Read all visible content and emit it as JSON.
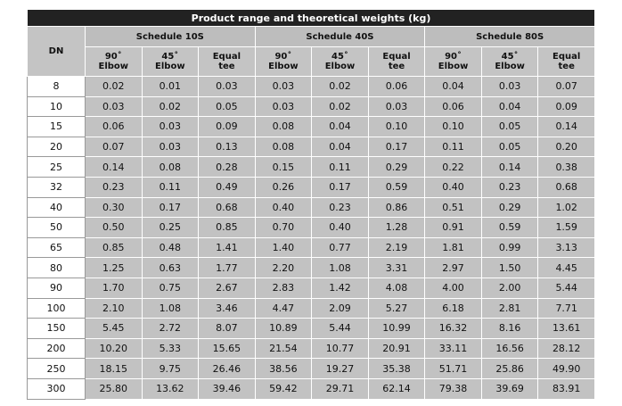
{
  "title": "Product range and theoretical weights (kg)",
  "dn_header": "DN",
  "groups": [
    "Schedule 10S",
    "Schedule 40S",
    "Schedule 80S"
  ],
  "sub_headers": [
    "90˚\nElbow",
    "45˚\nElbow",
    "Equal\ntee"
  ],
  "rows": [
    [
      "8",
      "0.02",
      "0.01",
      "0.03",
      "0.03",
      "0.02",
      "0.06",
      "0.04",
      "0.03",
      "0.07"
    ],
    [
      "10",
      "0.03",
      "0.02",
      "0.05",
      "0.03",
      "0.02",
      "0.03",
      "0.06",
      "0.04",
      "0.09"
    ],
    [
      "15",
      "0.06",
      "0.03",
      "0.09",
      "0.08",
      "0.04",
      "0.10",
      "0.10",
      "0.05",
      "0.14"
    ],
    [
      "20",
      "0.07",
      "0.03",
      "0.13",
      "0.08",
      "0.04",
      "0.17",
      "0.11",
      "0.05",
      "0.20"
    ],
    [
      "25",
      "0.14",
      "0.08",
      "0.28",
      "0.15",
      "0.11",
      "0.29",
      "0.22",
      "0.14",
      "0.38"
    ],
    [
      "32",
      "0.23",
      "0.11",
      "0.49",
      "0.26",
      "0.17",
      "0.59",
      "0.40",
      "0.23",
      "0.68"
    ],
    [
      "40",
      "0.30",
      "0.17",
      "0.68",
      "0.40",
      "0.23",
      "0.86",
      "0.51",
      "0.29",
      "1.02"
    ],
    [
      "50",
      "0.50",
      "0.25",
      "0.85",
      "0.70",
      "0.40",
      "1.28",
      "0.91",
      "0.59",
      "1.59"
    ],
    [
      "65",
      "0.85",
      "0.48",
      "1.41",
      "1.40",
      "0.77",
      "2.19",
      "1.81",
      "0.99",
      "3.13"
    ],
    [
      "80",
      "1.25",
      "0.63",
      "1.77",
      "2.20",
      "1.08",
      "3.31",
      "2.97",
      "1.50",
      "4.45"
    ],
    [
      "90",
      "1.70",
      "0.75",
      "2.67",
      "2.83",
      "1.42",
      "4.08",
      "4.00",
      "2.00",
      "5.44"
    ],
    [
      "100",
      "2.10",
      "1.08",
      "3.46",
      "4.47",
      "2.09",
      "5.27",
      "6.18",
      "2.81",
      "7.71"
    ],
    [
      "150",
      "5.45",
      "2.72",
      "8.07",
      "10.89",
      "5.44",
      "10.99",
      "16.32",
      "8.16",
      "13.61"
    ],
    [
      "200",
      "10.20",
      "5.33",
      "15.65",
      "21.54",
      "10.77",
      "20.91",
      "33.11",
      "16.56",
      "28.12"
    ],
    [
      "250",
      "18.15",
      "9.75",
      "26.46",
      "38.56",
      "19.27",
      "35.38",
      "51.71",
      "25.86",
      "49.90"
    ],
    [
      "300",
      "25.80",
      "13.62",
      "39.46",
      "59.42",
      "29.71",
      "62.14",
      "79.38",
      "39.69",
      "83.91"
    ]
  ]
}
